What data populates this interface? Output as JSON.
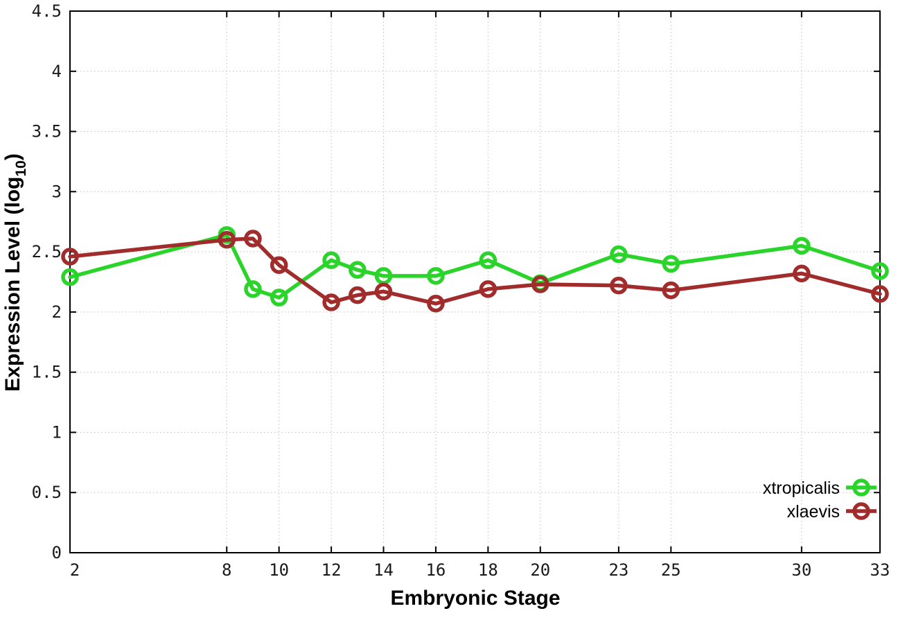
{
  "chart_data": {
    "type": "line",
    "title": "",
    "xlabel": "Embryonic Stage",
    "ylabel": "Expression Level (log10)",
    "x": [
      2,
      8,
      9,
      10,
      12,
      13,
      14,
      16,
      18,
      20,
      23,
      25,
      30,
      33
    ],
    "series": [
      {
        "name": "xtropicalis",
        "color": "#2bd42b",
        "values": [
          2.29,
          2.64,
          2.19,
          2.12,
          2.43,
          2.35,
          2.3,
          2.3,
          2.43,
          2.24,
          2.48,
          2.4,
          2.55,
          2.34
        ]
      },
      {
        "name": "xlaevis",
        "color": "#a02c2c",
        "values": [
          2.46,
          2.6,
          2.61,
          2.39,
          2.08,
          2.14,
          2.17,
          2.07,
          2.19,
          2.23,
          2.22,
          2.18,
          2.32,
          2.15
        ]
      }
    ],
    "x_ticks": [
      2,
      8,
      10,
      12,
      14,
      16,
      18,
      20,
      23,
      25,
      30,
      33
    ],
    "y_ticks": [
      0,
      0.5,
      1,
      1.5,
      2,
      2.5,
      3,
      3.5,
      4,
      4.5
    ],
    "xlim": [
      2,
      33
    ],
    "ylim": [
      0,
      4.5
    ],
    "grid": true,
    "legend_position": "bottom-right",
    "marker": "open-circle"
  },
  "axes": {
    "y_title_prefix": "Expression Level (log",
    "y_title_sub": "10",
    "y_title_suffix": ")",
    "x_title": "Embryonic Stage"
  },
  "colors": {
    "background": "#ffffff",
    "border": "#000000",
    "grid": "#bfbfbf",
    "text": "#000000",
    "xtropicalis": "#2bd42b",
    "xlaevis": "#a02c2c"
  }
}
